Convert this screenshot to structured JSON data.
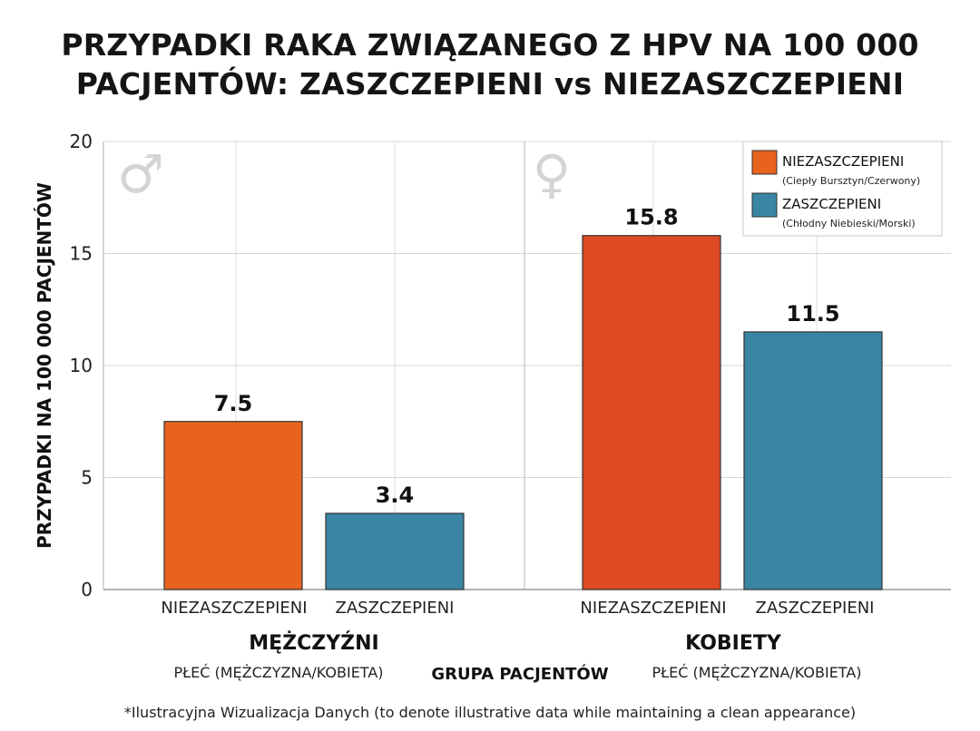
{
  "chart_data": {
    "type": "bar",
    "title": "PRZYPADKI RAKA ZWIĄZANEGO Z HPV NA 100 000 PACJENTÓW: ZASZCZEPIENI vs NIEZASZCZEPIENI",
    "title_lines": [
      "PRZYPADKI RAKA ZWIĄZANEGO Z HPV NA 100 000",
      "PACJENTÓW: ZASZCZEPIENI vs NIEZASZCZEPIENI"
    ],
    "ylabel": "PRZYPADKI NA 100 000 PACJENTÓW",
    "xlabel": "GRUPA PACJENTÓW",
    "ylim": [
      0,
      20
    ],
    "yticks": [
      0,
      5,
      10,
      15,
      20
    ],
    "grid": true,
    "legend_position": "top-right",
    "groups": [
      {
        "name": "MĘŻCZYŹNI",
        "sublabel": "PŁEĆ (MĘŻCZYZNA/KOBIETA)",
        "symbol": "♂",
        "categories": [
          "NIEZASZCZEPIENI",
          "ZASZCZEPIENI"
        ],
        "values": [
          7.5,
          3.4
        ],
        "value_labels": [
          "7.5",
          "3.4"
        ]
      },
      {
        "name": "KOBIETY",
        "sublabel": "PŁEĆ (MĘŻCZYZNA/KOBIETA)",
        "symbol": "♀",
        "categories": [
          "NIEZASZCZEPIENI",
          "ZASZCZEPIENI"
        ],
        "values": [
          15.8,
          11.5
        ],
        "value_labels": [
          "15.8",
          "11.5"
        ]
      }
    ],
    "series": [
      {
        "name": "NIEZASZCZEPIENI",
        "description": "(Ciepły Bursztyn/Czerwony)",
        "colors": [
          "#e8641e",
          "#dd4a24"
        ]
      },
      {
        "name": "ZASZCZEPIENI",
        "description": "(Chłodny Niebieski/Morski)",
        "colors": [
          "#3a85a3",
          "#3a85a3"
        ]
      }
    ]
  },
  "footnote": "*Ilustracyjna Wizualizacja Danych (to denote illustrative data while maintaining a clean appearance)"
}
